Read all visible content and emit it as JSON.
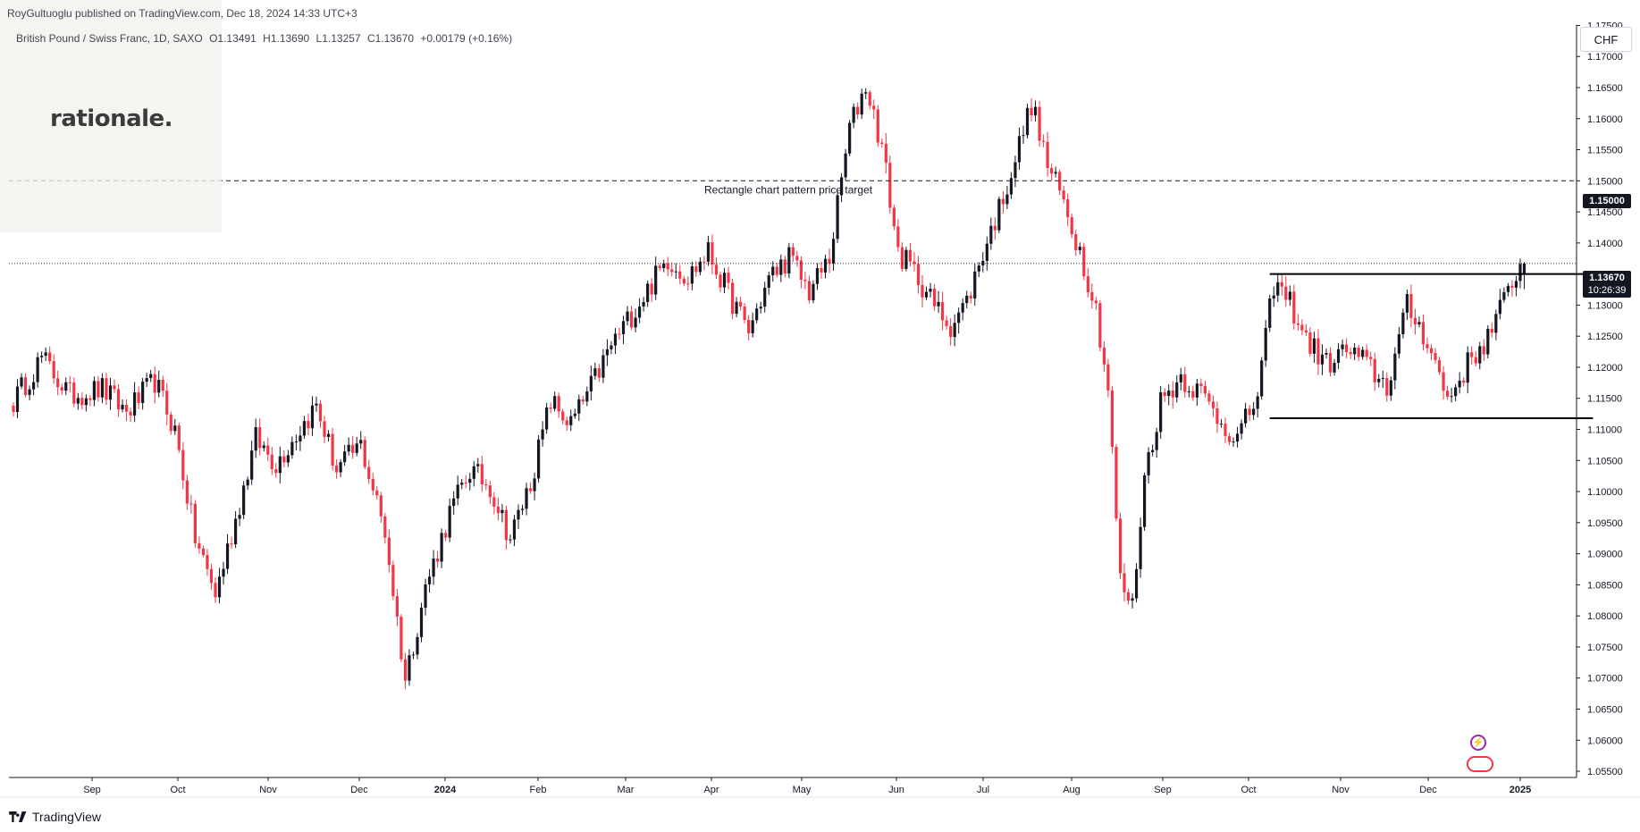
{
  "header": {
    "publish_line": "RoyGultuoglu published on TradingView.com, Dec 18, 2024 14:33 UTC+3",
    "symbol_name": "British Pound / Swiss Franc, 1D, SAXO",
    "ohlc": {
      "open": "O1.13491",
      "high": "H1.13690",
      "low": "L1.13257",
      "close": "C1.13670",
      "change": "+0.00179 (+0.16%)"
    }
  },
  "logo": {
    "text": "rationale."
  },
  "currency": "CHF",
  "price_badge": {
    "price": "1.13670",
    "countdown": "10:26:39"
  },
  "level_badge": "1.15000",
  "footer": {
    "brand": "TradingView"
  },
  "icons": {
    "lightning": "lightning-icon",
    "flag": "flag-icon",
    "tv_logo": "tradingview-logo-icon"
  },
  "colors": {
    "up": "#131722",
    "down": "#f23645",
    "grid": "#f0f3fa",
    "axis": "#131722"
  },
  "chart_data": {
    "type": "candlestick",
    "ylim": [
      1.054,
      1.1765
    ],
    "y_ticks": [
      "1.17500",
      "1.17000",
      "1.16500",
      "1.16000",
      "1.15500",
      "1.15000",
      "1.14500",
      "1.14000",
      "1.13500",
      "1.13000",
      "1.12500",
      "1.12000",
      "1.11500",
      "1.11000",
      "1.10500",
      "1.10000",
      "1.09500",
      "1.09000",
      "1.08500",
      "1.08000",
      "1.07500",
      "1.07000",
      "1.06500",
      "1.06000",
      "1.05500"
    ],
    "x_ticks": [
      {
        "label": "Sep",
        "bold": false
      },
      {
        "label": "Oct",
        "bold": false
      },
      {
        "label": "Nov",
        "bold": false
      },
      {
        "label": "Dec",
        "bold": false
      },
      {
        "label": "2024",
        "bold": true
      },
      {
        "label": "Feb",
        "bold": false
      },
      {
        "label": "Mar",
        "bold": false
      },
      {
        "label": "Apr",
        "bold": false
      },
      {
        "label": "May",
        "bold": false
      },
      {
        "label": "Jun",
        "bold": false
      },
      {
        "label": "Jul",
        "bold": false
      },
      {
        "label": "Aug",
        "bold": false
      },
      {
        "label": "Sep",
        "bold": false
      },
      {
        "label": "Oct",
        "bold": false
      },
      {
        "label": "Nov",
        "bold": false
      },
      {
        "label": "Dec",
        "bold": false
      },
      {
        "label": "2025",
        "bold": true
      }
    ],
    "anchors": [
      [
        0,
        1.1145
      ],
      [
        7,
        1.1215
      ],
      [
        14,
        1.1155
      ],
      [
        22,
        1.1165
      ],
      [
        28,
        1.1128
      ],
      [
        35,
        1.1178
      ],
      [
        40,
        1.1098
      ],
      [
        45,
        1.0925
      ],
      [
        50,
        1.0835
      ],
      [
        55,
        1.0955
      ],
      [
        60,
        1.1085
      ],
      [
        65,
        1.1045
      ],
      [
        70,
        1.1092
      ],
      [
        75,
        1.1138
      ],
      [
        80,
        1.1035
      ],
      [
        86,
        1.1075
      ],
      [
        92,
        1.0935
      ],
      [
        97,
        1.0698
      ],
      [
        102,
        1.0845
      ],
      [
        108,
        1.0965
      ],
      [
        113,
        1.1035
      ],
      [
        118,
        1.1008
      ],
      [
        123,
        1.0925
      ],
      [
        128,
        1.1015
      ],
      [
        133,
        1.1145
      ],
      [
        138,
        1.1108
      ],
      [
        143,
        1.1168
      ],
      [
        148,
        1.1235
      ],
      [
        153,
        1.1285
      ],
      [
        157,
        1.1325
      ],
      [
        162,
        1.1375
      ],
      [
        167,
        1.1345
      ],
      [
        172,
        1.1385
      ],
      [
        177,
        1.1318
      ],
      [
        182,
        1.1258
      ],
      [
        187,
        1.1342
      ],
      [
        192,
        1.1378
      ],
      [
        197,
        1.1322
      ],
      [
        202,
        1.1375
      ],
      [
        207,
        1.1585
      ],
      [
        211,
        1.1655
      ],
      [
        215,
        1.1555
      ],
      [
        219,
        1.1385
      ],
      [
        224,
        1.1345
      ],
      [
        228,
        1.1298
      ],
      [
        232,
        1.1268
      ],
      [
        236,
        1.1305
      ],
      [
        240,
        1.1385
      ],
      [
        244,
        1.1455
      ],
      [
        248,
        1.1535
      ],
      [
        252,
        1.1625
      ],
      [
        256,
        1.1525
      ],
      [
        260,
        1.1465
      ],
      [
        264,
        1.1388
      ],
      [
        268,
        1.1295
      ],
      [
        271,
        1.1165
      ],
      [
        274,
        1.0855
      ],
      [
        277,
        1.0815
      ],
      [
        280,
        1.1025
      ],
      [
        284,
        1.1145
      ],
      [
        289,
        1.1185
      ],
      [
        294,
        1.1158
      ],
      [
        299,
        1.1112
      ],
      [
        303,
        1.1085
      ],
      [
        308,
        1.1155
      ],
      [
        312,
        1.1335
      ],
      [
        316,
        1.1305
      ],
      [
        320,
        1.1245
      ],
      [
        325,
        1.1205
      ],
      [
        330,
        1.1228
      ],
      [
        335,
        1.1205
      ],
      [
        340,
        1.1168
      ],
      [
        345,
        1.1298
      ],
      [
        350,
        1.1245
      ],
      [
        355,
        1.1148
      ],
      [
        360,
        1.1205
      ],
      [
        365,
        1.1248
      ],
      [
        369,
        1.1305
      ],
      [
        372,
        1.1355
      ],
      [
        374,
        1.1367
      ]
    ],
    "bar_count": 375,
    "last_bar": {
      "open": 1.13491,
      "high": 1.1369,
      "low": 1.13257,
      "close": 1.1367
    },
    "horizontal_lines": [
      {
        "name": "target",
        "y": 1.15,
        "style": "dashed"
      },
      {
        "name": "last-price",
        "y": 1.1367,
        "style": "dotted"
      }
    ],
    "rectangle_lines": [
      {
        "name": "resistance",
        "y": 1.135,
        "from_bar": 311,
        "to_bar": 392
      },
      {
        "name": "support",
        "y": 1.1118,
        "from_bar": 311,
        "to_bar": 391
      }
    ],
    "annotation": {
      "text": "Rectangle chart pattern price target",
      "bar": 203,
      "y": 1.1484
    }
  }
}
